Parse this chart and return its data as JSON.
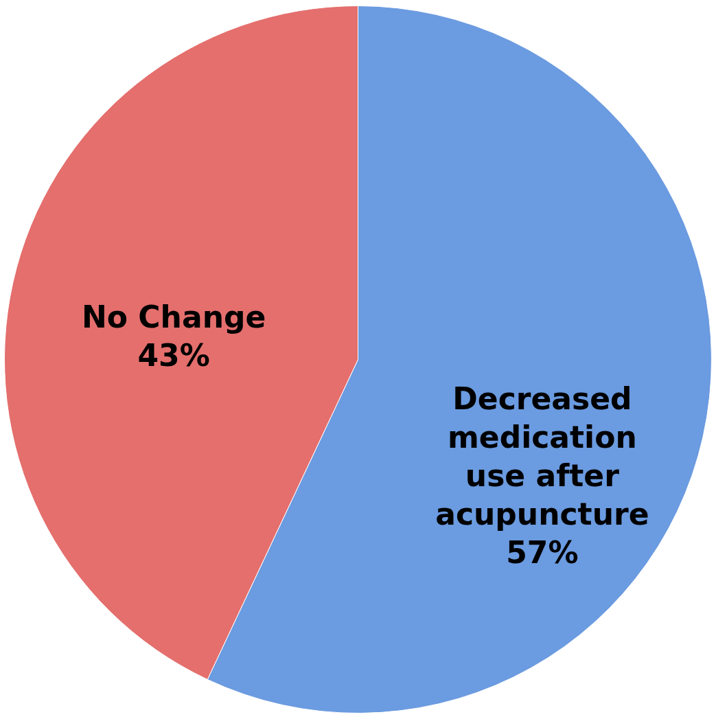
{
  "chart_data": {
    "type": "pie",
    "categories": [
      "Decreased medication use after acupuncture",
      "No Change"
    ],
    "values": [
      57,
      43
    ],
    "colors": [
      "#6b9be0",
      "#e46f6d"
    ],
    "value_labels": [
      "57%",
      "43%"
    ],
    "legend": false
  }
}
